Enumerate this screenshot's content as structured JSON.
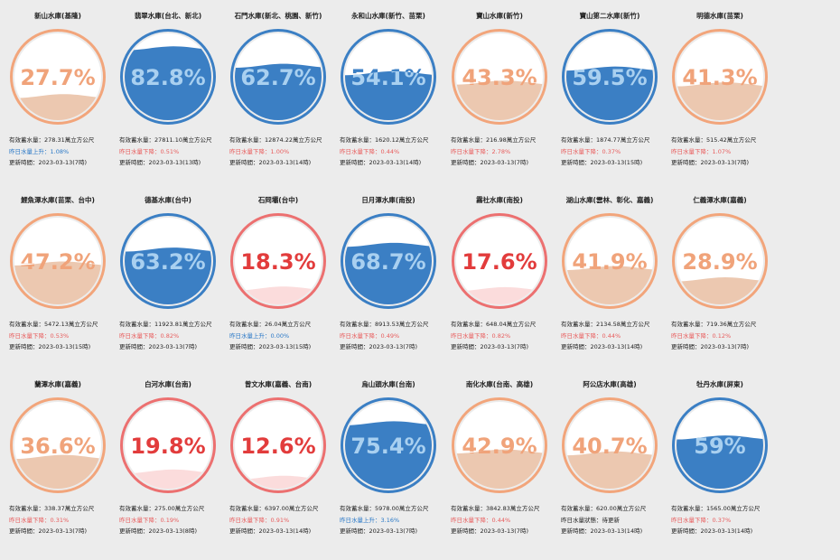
{
  "labels": {
    "volume_prefix": "有效蓄水量：",
    "volume_unit": "萬立方公尺",
    "update_prefix": "更新時間："
  },
  "colors": {
    "blue": "#3b7fc4",
    "blue_ring": "#3b7fc4",
    "blue_text_on_water": "#a9d0f0",
    "orange_ring": "#f2a57b",
    "orange_text": "#f0a37a",
    "orange_fill": "#ecc8b0",
    "red_ring": "#ec7070",
    "red_text": "#e23c3c",
    "red_fill": "#fbdcdc",
    "change_up": "#2b79c7",
    "change_down": "#e85c5c",
    "change_neutral": "#222222"
  },
  "reservoirs": [
    {
      "name": "新山水庫(基隆)",
      "percent_text": "27.7%",
      "level": 0.277,
      "theme": "orange",
      "volume": "278.31",
      "change_text": "昨日水量上升：1.08%",
      "change_dir": "up",
      "updated": "2023-03-13(7時)"
    },
    {
      "name": "翡翠水庫(台北、新北)",
      "percent_text": "82.8%",
      "level": 0.828,
      "theme": "blue",
      "volume": "27811.10",
      "change_text": "昨日水量下降：0.51%",
      "change_dir": "down",
      "updated": "2023-03-13(13時)"
    },
    {
      "name": "石門水庫(新北、桃園、新竹)",
      "percent_text": "62.7%",
      "level": 0.627,
      "theme": "blue",
      "volume": "12874.22",
      "change_text": "昨日水量下降：1.00%",
      "change_dir": "down",
      "updated": "2023-03-13(14時)"
    },
    {
      "name": "永和山水庫(新竹、苗栗)",
      "percent_text": "54.1%",
      "level": 0.541,
      "theme": "blue",
      "volume": "1620.12",
      "change_text": "昨日水量下降：0.44%",
      "change_dir": "down",
      "updated": "2023-03-13(14時)"
    },
    {
      "name": "寶山水庫(新竹)",
      "percent_text": "43.3%",
      "level": 0.433,
      "theme": "orange",
      "volume": "216.98",
      "change_text": "昨日水量下降：2.78%",
      "change_dir": "down",
      "updated": "2023-03-13(7時)"
    },
    {
      "name": "寶山第二水庫(新竹)",
      "percent_text": "59.5%",
      "level": 0.595,
      "theme": "blue",
      "volume": "1874.77",
      "change_text": "昨日水量下降：0.37%",
      "change_dir": "down",
      "updated": "2023-03-13(15時)"
    },
    {
      "name": "明德水庫(苗栗)",
      "percent_text": "41.3%",
      "level": 0.413,
      "theme": "orange",
      "volume": "515.42",
      "change_text": "昨日水量下降：1.07%",
      "change_dir": "down",
      "updated": "2023-03-13(7時)"
    },
    {
      "name": "鯉魚潭水庫(苗栗、台中)",
      "percent_text": "47.2%",
      "level": 0.472,
      "theme": "orange",
      "volume": "5472.13",
      "change_text": "昨日水量下降：0.53%",
      "change_dir": "down",
      "updated": "2023-03-13(15時)"
    },
    {
      "name": "德基水庫(台中)",
      "percent_text": "63.2%",
      "level": 0.632,
      "theme": "blue",
      "volume": "11923.81",
      "change_text": "昨日水量下降：0.82%",
      "change_dir": "down",
      "updated": "2023-03-13(7時)"
    },
    {
      "name": "石岡壩(台中)",
      "percent_text": "18.3%",
      "level": 0.183,
      "theme": "red",
      "volume": "26.04",
      "change_text": "昨日水量上升：0.00%",
      "change_dir": "up",
      "updated": "2023-03-13(15時)"
    },
    {
      "name": "日月潭水庫(南投)",
      "percent_text": "68.7%",
      "level": 0.687,
      "theme": "blue",
      "volume": "8913.53",
      "change_text": "昨日水量下降：0.49%",
      "change_dir": "down",
      "updated": "2023-03-13(7時)"
    },
    {
      "name": "霧社水庫(南投)",
      "percent_text": "17.6%",
      "level": 0.176,
      "theme": "red",
      "volume": "648.04",
      "change_text": "昨日水量下降：0.82%",
      "change_dir": "down",
      "updated": "2023-03-13(7時)"
    },
    {
      "name": "湖山水庫(雲林、彰化、嘉義)",
      "percent_text": "41.9%",
      "level": 0.419,
      "theme": "orange",
      "volume": "2134.58",
      "change_text": "昨日水量下降：0.44%",
      "change_dir": "down",
      "updated": "2023-03-13(14時)"
    },
    {
      "name": "仁義潭水庫(嘉義)",
      "percent_text": "28.9%",
      "level": 0.289,
      "theme": "orange",
      "volume": "719.36",
      "change_text": "昨日水量下降：0.12%",
      "change_dir": "down",
      "updated": "2023-03-13(7時)"
    },
    {
      "name": "蘭潭水庫(嘉義)",
      "percent_text": "36.6%",
      "level": 0.366,
      "theme": "orange",
      "volume": "338.37",
      "change_text": "昨日水量下降：0.31%",
      "change_dir": "down",
      "updated": "2023-03-13(7時)"
    },
    {
      "name": "白河水庫(台南)",
      "percent_text": "19.8%",
      "level": 0.198,
      "theme": "red",
      "volume": "275.00",
      "change_text": "昨日水量下降：0.19%",
      "change_dir": "down",
      "updated": "2023-03-13(8時)"
    },
    {
      "name": "曾文水庫(嘉義、台南)",
      "percent_text": "12.6%",
      "level": 0.126,
      "theme": "red",
      "volume": "6397.00",
      "change_text": "昨日水量下降：0.91%",
      "change_dir": "down",
      "updated": "2023-03-13(14時)"
    },
    {
      "name": "烏山頭水庫(台南)",
      "percent_text": "75.4%",
      "level": 0.754,
      "theme": "blue",
      "volume": "5978.00",
      "change_text": "昨日水量上升：3.16%",
      "change_dir": "up",
      "updated": "2023-03-13(7時)"
    },
    {
      "name": "南化水庫(台南、高雄)",
      "percent_text": "42.9%",
      "level": 0.429,
      "theme": "orange",
      "volume": "3842.83",
      "change_text": "昨日水量下降：0.44%",
      "change_dir": "down",
      "updated": "2023-03-13(7時)"
    },
    {
      "name": "阿公店水庫(高雄)",
      "percent_text": "40.7%",
      "level": 0.407,
      "theme": "orange",
      "volume": "620.00",
      "change_text": "昨日水量狀態：待更新",
      "change_dir": "neutral",
      "updated": "2023-03-13(14時)"
    },
    {
      "name": "牡丹水庫(屏東)",
      "percent_text": "59%",
      "level": 0.59,
      "theme": "blue",
      "volume": "1565.00",
      "change_text": "昨日水量下降：0.37%",
      "change_dir": "down",
      "updated": "2023-03-13(14時)"
    }
  ]
}
